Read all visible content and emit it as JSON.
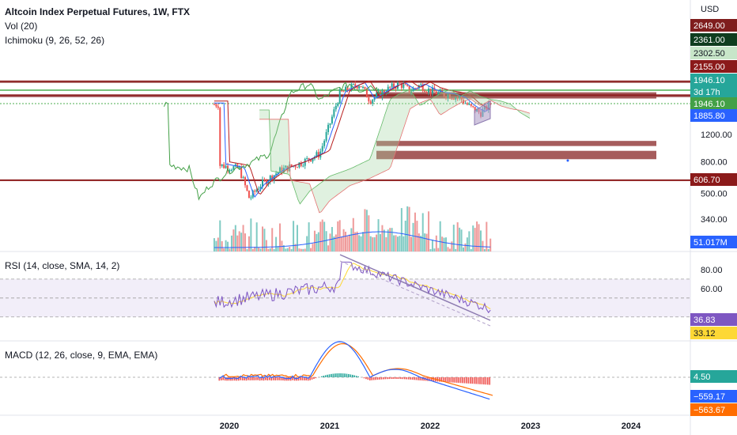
{
  "header": {
    "title": "Altcoin Index Perpetual Futures, 1W, FTX",
    "vol": "Vol (20)",
    "ichimoku": "Ichimoku (9, 26, 52, 26)",
    "currency": "USD"
  },
  "rsi": {
    "label": "RSI (14, close, SMA, 14, 2)"
  },
  "macd": {
    "label": "MACD (12, 26, close, 9, EMA, EMA)"
  },
  "colors": {
    "up": "#26a69a",
    "down": "#ef5350",
    "ichimokuConv": "#2962ff",
    "ichimokuBase": "#b71c1c",
    "lagging": "#43a047",
    "cloudUp": "#a5d6a7",
    "cloudDown": "#ef9a9a",
    "zone": "#9c4a4a",
    "rsi": "#7e57c2",
    "rsiMa": "#fdd835",
    "macd": "#2962ff",
    "signal": "#ff6d00"
  },
  "chart_data": [
    {
      "type": "candlestick",
      "title": "Altcoin Index Perpetual Futures, 1W, FTX",
      "y_scale": "log",
      "x_ticks": [
        "2020",
        "2021",
        "2022",
        "2023",
        "2024"
      ],
      "y_ticks": [
        "1200.00",
        "800.00",
        "500.00",
        "340.00"
      ],
      "price_labels": [
        {
          "value": "2649.00",
          "color": "#7f1d1d"
        },
        {
          "value": "2361.00",
          "color": "#0f3d1f"
        },
        {
          "value": "2302.50",
          "color": "#c8e6c9"
        },
        {
          "value": "2155.00",
          "color": "#8b1a1a"
        },
        {
          "value": "1946.10",
          "color": "#26a69a"
        },
        {
          "value": "3d 17h",
          "color": "#26a69a"
        },
        {
          "value": "1946.10",
          "color": "#43a047"
        },
        {
          "value": "1885.80",
          "color": "#2962ff"
        },
        {
          "value": "606.70",
          "color": "#8b1a1a"
        }
      ],
      "volume_label": "51.017M",
      "horizontal_levels": [
        2649,
        2155,
        606.7
      ],
      "zones": [
        {
          "from": 2050,
          "to": 2250
        },
        {
          "from": 1010,
          "to": 1090
        },
        {
          "from": 830,
          "to": 940
        }
      ]
    },
    {
      "type": "line",
      "title": "RSI (14, close, SMA, 14, 2)",
      "y_ticks": [
        "80.00",
        "60.00"
      ],
      "bands": [
        70,
        50,
        30
      ],
      "last_values": [
        "36.83",
        "33.12"
      ]
    },
    {
      "type": "line",
      "title": "MACD (12, 26, close, 9, EMA, EMA)",
      "last_values": [
        "4.50",
        "−559.17",
        "−563.67"
      ]
    }
  ]
}
